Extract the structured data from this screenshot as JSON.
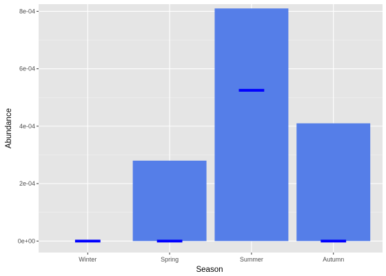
{
  "chart_data": {
    "type": "bar",
    "categories": [
      "Winter",
      "Spring",
      "Summer",
      "Autumn"
    ],
    "series": [
      {
        "values": [
          0,
          0.00028,
          0.00081,
          0.00041
        ]
      }
    ],
    "markers": [
      0,
      0,
      0.000525,
      0
    ],
    "xlabel": "Season",
    "ylabel": "Abundance",
    "ylim": [
      -4e-05,
      0.000825
    ],
    "yticks": [
      0,
      0.0002,
      0.0004,
      0.0006,
      0.0008
    ],
    "ytick_labels": [
      "0e+00",
      "2e-04",
      "4e-04",
      "6e-04",
      "8e-04"
    ],
    "grid": true,
    "colors": {
      "bar": "#557ee8",
      "marker": "#0000ff",
      "panel": "#e5e5e5",
      "grid_major": "#ffffff",
      "grid_minor": "#f2f2f2"
    }
  }
}
